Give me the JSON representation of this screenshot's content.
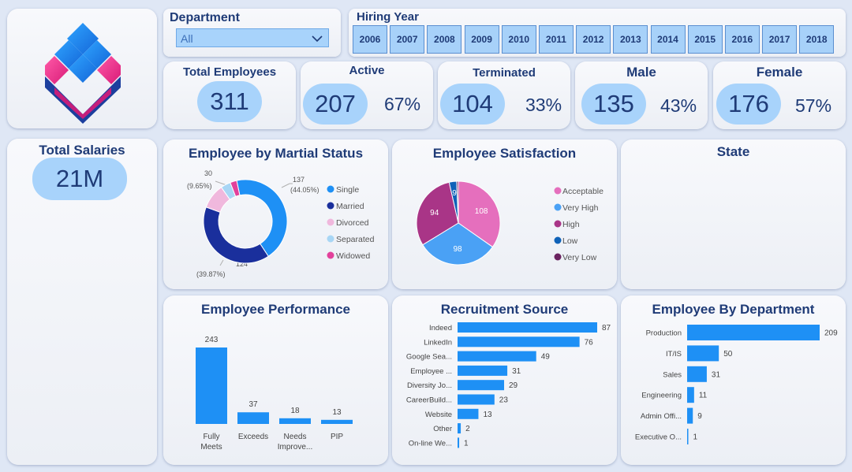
{
  "department": {
    "label": "Department",
    "selected": "All"
  },
  "hiring_year": {
    "label": "Hiring Year",
    "years": [
      "2006",
      "2007",
      "2008",
      "2009",
      "2010",
      "2011",
      "2012",
      "2013",
      "2014",
      "2015",
      "2016",
      "2017",
      "2018"
    ]
  },
  "kpis": {
    "total": {
      "label": "Total Employees",
      "value": "311"
    },
    "active": {
      "label": "Active",
      "value": "207",
      "pct": "67%"
    },
    "terminated": {
      "label": "Terminated",
      "value": "104",
      "pct": "33%"
    },
    "male": {
      "label": "Male",
      "value": "135",
      "pct": "43%"
    },
    "female": {
      "label": "Female",
      "value": "176",
      "pct": "57%"
    }
  },
  "salaries": {
    "label": "Total Salaries",
    "value": "21M"
  },
  "state": {
    "title": "State"
  },
  "colors": {
    "accent": "#1e90f5",
    "pill": "#a8d3fb",
    "title": "#1f3b77"
  },
  "chart_data": [
    {
      "id": "marital",
      "type": "pie",
      "title": "Employee by Martial Status",
      "categories": [
        "Single",
        "Married",
        "Divorced",
        "Separated",
        "Widowed"
      ],
      "values": [
        137,
        124,
        30,
        12,
        8
      ],
      "colors": [
        "#1e90f5",
        "#1a2f9c",
        "#f0b8dd",
        "#a8d6f5",
        "#e2419b"
      ],
      "data_labels": {
        "single": {
          "value": "137",
          "pct": "(44.05%)"
        },
        "married": {
          "value": "124",
          "pct": "(39.87%)"
        },
        "divorced": {
          "value": "30",
          "pct": "(9.65%)"
        }
      }
    },
    {
      "id": "satisfaction",
      "type": "pie",
      "title": "Employee Satisfaction",
      "categories": [
        "Acceptable",
        "Very High",
        "High",
        "Low",
        "Very Low"
      ],
      "values": [
        108,
        98,
        94,
        9,
        2
      ],
      "colors": [
        "#e56fbd",
        "#4aa1f5",
        "#a93587",
        "#0f62b8",
        "#6b2360"
      ],
      "labels": [
        "108",
        "98",
        "94",
        "9",
        ""
      ]
    },
    {
      "id": "performance",
      "type": "bar",
      "title": "Employee Performance",
      "categories": [
        "Fully Meets",
        "Exceeds",
        "Needs Improvement",
        "PIP"
      ],
      "tick_labels": [
        [
          "Fully",
          "Meets"
        ],
        [
          "Exceeds"
        ],
        [
          "Needs",
          "Improve..."
        ],
        [
          "PIP"
        ]
      ],
      "values": [
        243,
        37,
        18,
        13
      ]
    },
    {
      "id": "recruitment",
      "type": "bar",
      "orientation": "horizontal",
      "title": "Recruitment Source",
      "categories": [
        "Indeed",
        "LinkedIn",
        "Google Sea...",
        "Employee ...",
        "Diversity Jo...",
        "CareerBuild...",
        "Website",
        "Other",
        "On-line We..."
      ],
      "values": [
        87,
        76,
        49,
        31,
        29,
        23,
        13,
        2,
        1
      ]
    },
    {
      "id": "department",
      "type": "bar",
      "orientation": "horizontal",
      "title": "Employee By Department",
      "categories": [
        "Production",
        "IT/IS",
        "Sales",
        "Engineering",
        "Admin Offi...",
        "Executive O..."
      ],
      "values": [
        209,
        50,
        31,
        11,
        9,
        1
      ]
    }
  ]
}
